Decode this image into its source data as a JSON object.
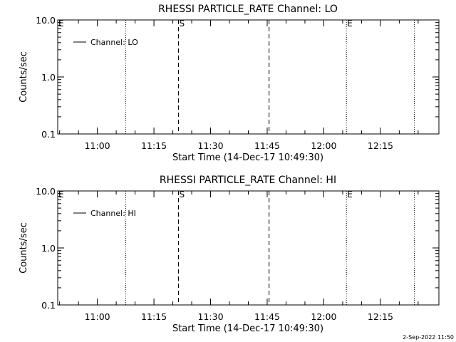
{
  "footer": {
    "timestamp": "2-Sep-2022 11:50"
  },
  "chart_data": [
    {
      "type": "line",
      "title": "RHESSI PARTICLE_RATE Channel: LO",
      "xlabel": "Start Time (14-Dec-17 10:49:30)",
      "ylabel": "Counts/sec",
      "x_tick_labels": [
        "11:00",
        "11:15",
        "11:30",
        "11:45",
        "12:00",
        "12:15"
      ],
      "x_ticks_minutes": [
        660,
        675,
        690,
        705,
        720,
        735
      ],
      "xlim_minutes": [
        649.5,
        750.5
      ],
      "y_scale": "log",
      "ylim": [
        0.1,
        10.0
      ],
      "y_tick_labels": [
        "0.1",
        "1.0",
        "10.0"
      ],
      "y_ticks": [
        0.1,
        1.0,
        10.0
      ],
      "series": [
        {
          "name": "Channel: LO",
          "x": [],
          "y": []
        }
      ],
      "legend_position": "top-left",
      "markers": [
        {
          "time": "10:49",
          "minutes": 649.5,
          "style": "dotted",
          "label": "E"
        },
        {
          "time": "11:07",
          "minutes": 667.5,
          "style": "dotted",
          "label": ""
        },
        {
          "time": "11:21",
          "minutes": 681.5,
          "style": "dashed",
          "label": "S"
        },
        {
          "time": "11:45",
          "minutes": 705.5,
          "style": "dashed",
          "label": ""
        },
        {
          "time": "12:06",
          "minutes": 726.0,
          "style": "dotted",
          "label": "E"
        },
        {
          "time": "12:24",
          "minutes": 744.0,
          "style": "dotted",
          "label": ""
        }
      ]
    },
    {
      "type": "line",
      "title": "RHESSI PARTICLE_RATE Channel: HI",
      "xlabel": "Start Time (14-Dec-17 10:49:30)",
      "ylabel": "Counts/sec",
      "x_tick_labels": [
        "11:00",
        "11:15",
        "11:30",
        "11:45",
        "12:00",
        "12:15"
      ],
      "x_ticks_minutes": [
        660,
        675,
        690,
        705,
        720,
        735
      ],
      "xlim_minutes": [
        649.5,
        750.5
      ],
      "y_scale": "log",
      "ylim": [
        0.1,
        10.0
      ],
      "y_tick_labels": [
        "0.1",
        "1.0",
        "10.0"
      ],
      "y_ticks": [
        0.1,
        1.0,
        10.0
      ],
      "series": [
        {
          "name": "Channel: HI",
          "x": [],
          "y": []
        }
      ],
      "legend_position": "top-left",
      "markers": [
        {
          "time": "10:49",
          "minutes": 649.5,
          "style": "dotted",
          "label": "E"
        },
        {
          "time": "11:07",
          "minutes": 667.5,
          "style": "dotted",
          "label": ""
        },
        {
          "time": "11:21",
          "minutes": 681.5,
          "style": "dashed",
          "label": "S"
        },
        {
          "time": "11:45",
          "minutes": 705.5,
          "style": "dashed",
          "label": ""
        },
        {
          "time": "12:06",
          "minutes": 726.0,
          "style": "dotted",
          "label": "E"
        },
        {
          "time": "12:24",
          "minutes": 744.0,
          "style": "dotted",
          "label": ""
        }
      ]
    }
  ]
}
